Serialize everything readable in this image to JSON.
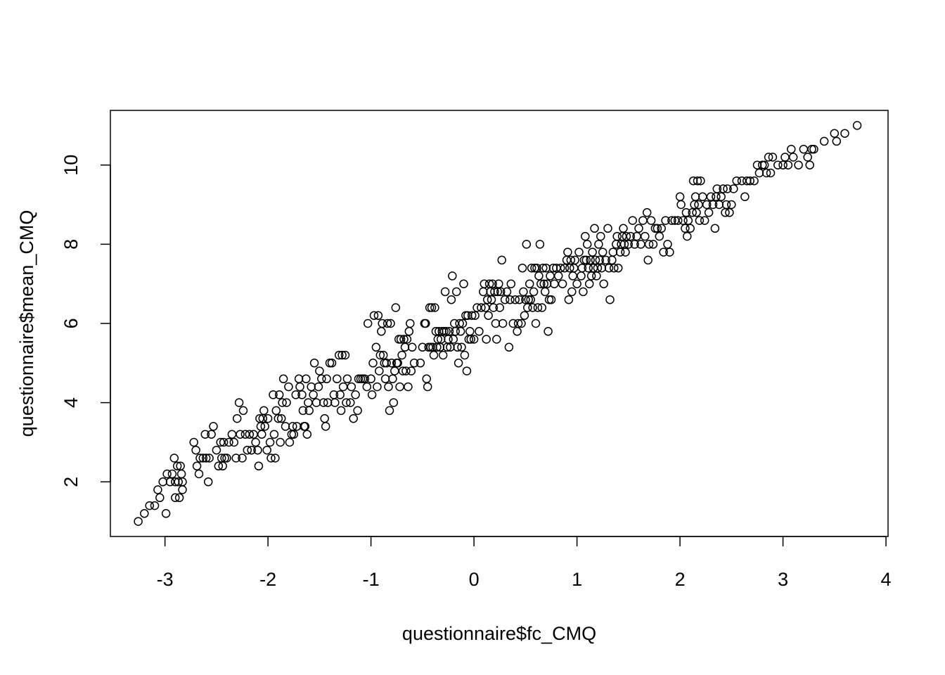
{
  "chart_data": {
    "type": "scatter",
    "title": "",
    "xlabel": "questionnaire$fc_CMQ",
    "ylabel": "questionnaire$mean_CMQ",
    "xlim": [
      -3.53,
      4.02
    ],
    "ylim": [
      0.62,
      11.38
    ],
    "xticks": [
      -3,
      -2,
      -1,
      0,
      1,
      2,
      3,
      4
    ],
    "yticks": [
      2,
      4,
      6,
      8,
      10
    ],
    "grid": false,
    "legend": "none",
    "marker": "open-circle",
    "points": [
      [
        -3.26,
        1.0
      ],
      [
        -3.2,
        1.2
      ],
      [
        -3.15,
        1.4
      ],
      [
        -3.1,
        1.4
      ],
      [
        -3.07,
        1.8
      ],
      [
        -3.05,
        1.6
      ],
      [
        -3.02,
        2.0
      ],
      [
        -2.99,
        1.2
      ],
      [
        -2.98,
        2.2
      ],
      [
        -2.95,
        2.0
      ],
      [
        -2.93,
        2.2
      ],
      [
        -2.91,
        2.6
      ],
      [
        -2.9,
        2.0
      ],
      [
        -2.9,
        1.6
      ],
      [
        -2.88,
        2.4
      ],
      [
        -2.87,
        2.0
      ],
      [
        -2.86,
        1.6
      ],
      [
        -2.85,
        2.4
      ],
      [
        -2.84,
        2.2
      ],
      [
        -2.83,
        1.8
      ],
      [
        -2.83,
        2.0
      ],
      [
        -2.72,
        3.0
      ],
      [
        -2.7,
        2.8
      ],
      [
        -2.69,
        2.4
      ],
      [
        -2.67,
        2.2
      ],
      [
        -2.66,
        2.6
      ],
      [
        -2.63,
        2.6
      ],
      [
        -2.61,
        3.2
      ],
      [
        -2.6,
        2.6
      ],
      [
        -2.58,
        2.0
      ],
      [
        -2.57,
        2.6
      ],
      [
        -2.55,
        3.2
      ],
      [
        -2.53,
        3.4
      ],
      [
        -2.5,
        2.8
      ],
      [
        -2.48,
        2.4
      ],
      [
        -2.46,
        3.0
      ],
      [
        -2.45,
        2.6
      ],
      [
        -2.44,
        2.4
      ],
      [
        -2.43,
        3.0
      ],
      [
        -2.42,
        2.6
      ],
      [
        -2.4,
        2.6
      ],
      [
        -2.38,
        3.0
      ],
      [
        -2.35,
        3.2
      ],
      [
        -2.33,
        3.0
      ],
      [
        -2.31,
        2.6
      ],
      [
        -2.3,
        3.6
      ],
      [
        -2.28,
        4.0
      ],
      [
        -2.27,
        3.2
      ],
      [
        -2.25,
        2.6
      ],
      [
        -2.24,
        3.8
      ],
      [
        -2.22,
        3.2
      ],
      [
        -2.2,
        2.8
      ],
      [
        -2.18,
        3.2
      ],
      [
        -2.16,
        2.8
      ],
      [
        -2.14,
        3.2
      ],
      [
        -2.12,
        3.0
      ],
      [
        -2.1,
        2.8
      ],
      [
        -2.09,
        2.4
      ],
      [
        -2.08,
        3.6
      ],
      [
        -2.07,
        3.4
      ],
      [
        -2.06,
        3.2
      ],
      [
        -2.05,
        3.6
      ],
      [
        -2.04,
        3.8
      ],
      [
        -2.03,
        3.4
      ],
      [
        -2.01,
        2.8
      ],
      [
        -2.0,
        3.6
      ],
      [
        -1.98,
        3.0
      ],
      [
        -1.97,
        2.6
      ],
      [
        -1.95,
        4.2
      ],
      [
        -1.94,
        3.2
      ],
      [
        -1.93,
        2.6
      ],
      [
        -1.92,
        3.8
      ],
      [
        -1.9,
        3.6
      ],
      [
        -1.89,
        4.2
      ],
      [
        -1.88,
        3.0
      ],
      [
        -1.87,
        3.6
      ],
      [
        -1.86,
        4.0
      ],
      [
        -1.85,
        4.6
      ],
      [
        -1.83,
        3.4
      ],
      [
        -1.82,
        4.0
      ],
      [
        -1.8,
        4.4
      ],
      [
        -1.79,
        3.0
      ],
      [
        -1.77,
        3.2
      ],
      [
        -1.76,
        3.4
      ],
      [
        -1.75,
        3.2
      ],
      [
        -1.73,
        4.2
      ],
      [
        -1.72,
        3.4
      ],
      [
        -1.7,
        4.6
      ],
      [
        -1.69,
        4.4
      ],
      [
        -1.67,
        4.2
      ],
      [
        -1.66,
        3.8
      ],
      [
        -1.65,
        3.4
      ],
      [
        -1.64,
        3.4
      ],
      [
        -1.63,
        4.6
      ],
      [
        -1.62,
        3.2
      ],
      [
        -1.61,
        4.0
      ],
      [
        -1.6,
        3.8
      ],
      [
        -1.58,
        4.4
      ],
      [
        -1.56,
        4.2
      ],
      [
        -1.55,
        5.0
      ],
      [
        -1.53,
        4.0
      ],
      [
        -1.51,
        4.4
      ],
      [
        -1.5,
        4.8
      ],
      [
        -1.48,
        4.6
      ],
      [
        -1.46,
        4.0
      ],
      [
        -1.45,
        3.6
      ],
      [
        -1.44,
        3.4
      ],
      [
        -1.43,
        4.6
      ],
      [
        -1.42,
        4.0
      ],
      [
        -1.4,
        5.0
      ],
      [
        -1.38,
        5.0
      ],
      [
        -1.36,
        4.2
      ],
      [
        -1.35,
        4.0
      ],
      [
        -1.33,
        4.6
      ],
      [
        -1.31,
        5.2
      ],
      [
        -1.3,
        4.2
      ],
      [
        -1.29,
        3.8
      ],
      [
        -1.28,
        5.2
      ],
      [
        -1.27,
        4.4
      ],
      [
        -1.25,
        5.2
      ],
      [
        -1.24,
        4.0
      ],
      [
        -1.23,
        4.6
      ],
      [
        -1.2,
        4.0
      ],
      [
        -1.19,
        4.4
      ],
      [
        -1.17,
        3.6
      ],
      [
        -1.15,
        4.2
      ],
      [
        -1.13,
        3.8
      ],
      [
        -1.12,
        4.6
      ],
      [
        -1.1,
        4.6
      ],
      [
        -1.08,
        4.6
      ],
      [
        -1.06,
        4.6
      ],
      [
        -1.04,
        4.4
      ],
      [
        -1.03,
        6.0
      ],
      [
        -1.0,
        4.6
      ],
      [
        -0.99,
        4.2
      ],
      [
        -0.98,
        5.0
      ],
      [
        -0.97,
        6.2
      ],
      [
        -0.95,
        5.4
      ],
      [
        -0.94,
        4.4
      ],
      [
        -0.93,
        6.2
      ],
      [
        -0.92,
        4.8
      ],
      [
        -0.91,
        5.2
      ],
      [
        -0.9,
        5.8
      ],
      [
        -0.89,
        6.0
      ],
      [
        -0.88,
        5.2
      ],
      [
        -0.87,
        5.0
      ],
      [
        -0.86,
        4.6
      ],
      [
        -0.85,
        5.0
      ],
      [
        -0.84,
        6.0
      ],
      [
        -0.83,
        4.4
      ],
      [
        -0.82,
        3.8
      ],
      [
        -0.81,
        6.0
      ],
      [
        -0.8,
        5.0
      ],
      [
        -0.79,
        4.6
      ],
      [
        -0.78,
        4.0
      ],
      [
        -0.77,
        4.8
      ],
      [
        -0.76,
        6.4
      ],
      [
        -0.75,
        5.0
      ],
      [
        -0.74,
        5.0
      ],
      [
        -0.73,
        5.6
      ],
      [
        -0.72,
        4.4
      ],
      [
        -0.71,
        5.6
      ],
      [
        -0.7,
        5.2
      ],
      [
        -0.69,
        4.8
      ],
      [
        -0.68,
        5.6
      ],
      [
        -0.67,
        5.4
      ],
      [
        -0.66,
        4.8
      ],
      [
        -0.65,
        5.6
      ],
      [
        -0.64,
        4.4
      ],
      [
        -0.63,
        5.8
      ],
      [
        -0.62,
        6.0
      ],
      [
        -0.61,
        4.8
      ],
      [
        -0.6,
        5.4
      ],
      [
        -0.58,
        5.0
      ],
      [
        -0.52,
        5.0
      ],
      [
        -0.5,
        5.4
      ],
      [
        -0.48,
        6.0
      ],
      [
        -0.47,
        6.0
      ],
      [
        -0.46,
        4.6
      ],
      [
        -0.45,
        4.4
      ],
      [
        -0.44,
        5.4
      ],
      [
        -0.43,
        6.4
      ],
      [
        -0.42,
        5.4
      ],
      [
        -0.41,
        6.4
      ],
      [
        -0.4,
        5.4
      ],
      [
        -0.39,
        5.2
      ],
      [
        -0.38,
        6.4
      ],
      [
        -0.37,
        5.8
      ],
      [
        -0.36,
        5.4
      ],
      [
        -0.35,
        5.6
      ],
      [
        -0.34,
        5.8
      ],
      [
        -0.33,
        5.4
      ],
      [
        -0.32,
        5.6
      ],
      [
        -0.31,
        5.8
      ],
      [
        -0.3,
        5.2
      ],
      [
        -0.29,
        5.8
      ],
      [
        -0.28,
        6.8
      ],
      [
        -0.27,
        5.8
      ],
      [
        -0.26,
        5.4
      ],
      [
        -0.25,
        5.6
      ],
      [
        -0.24,
        5.8
      ],
      [
        -0.23,
        5.4
      ],
      [
        -0.22,
        6.6
      ],
      [
        -0.21,
        7.2
      ],
      [
        -0.2,
        5.6
      ],
      [
        -0.19,
        6.0
      ],
      [
        -0.18,
        5.8
      ],
      [
        -0.17,
        6.8
      ],
      [
        -0.16,
        5.4
      ],
      [
        -0.15,
        5.0
      ],
      [
        -0.14,
        6.0
      ],
      [
        -0.13,
        5.8
      ],
      [
        -0.12,
        5.4
      ],
      [
        -0.11,
        6.0
      ],
      [
        -0.1,
        7.0
      ],
      [
        -0.09,
        5.2
      ],
      [
        -0.08,
        6.2
      ],
      [
        -0.07,
        4.8
      ],
      [
        -0.06,
        6.2
      ],
      [
        -0.05,
        5.6
      ],
      [
        -0.04,
        5.8
      ],
      [
        -0.03,
        5.6
      ],
      [
        -0.02,
        6.2
      ],
      [
        0.0,
        5.6
      ],
      [
        0.01,
        6.2
      ],
      [
        0.03,
        6.4
      ],
      [
        0.05,
        5.8
      ],
      [
        0.07,
        6.4
      ],
      [
        0.09,
        6.8
      ],
      [
        0.1,
        7.0
      ],
      [
        0.11,
        6.4
      ],
      [
        0.12,
        5.6
      ],
      [
        0.13,
        6.6
      ],
      [
        0.14,
        6.2
      ],
      [
        0.15,
        7.0
      ],
      [
        0.16,
        6.8
      ],
      [
        0.17,
        6.6
      ],
      [
        0.18,
        7.0
      ],
      [
        0.19,
        6.4
      ],
      [
        0.2,
        6.8
      ],
      [
        0.21,
        6.0
      ],
      [
        0.22,
        5.6
      ],
      [
        0.23,
        6.8
      ],
      [
        0.24,
        7.0
      ],
      [
        0.25,
        6.4
      ],
      [
        0.26,
        6.8
      ],
      [
        0.27,
        7.6
      ],
      [
        0.28,
        6.0
      ],
      [
        0.3,
        6.6
      ],
      [
        0.32,
        6.8
      ],
      [
        0.34,
        5.4
      ],
      [
        0.35,
        6.6
      ],
      [
        0.36,
        7.0
      ],
      [
        0.38,
        6.0
      ],
      [
        0.4,
        6.6
      ],
      [
        0.42,
        5.8
      ],
      [
        0.43,
        6.0
      ],
      [
        0.44,
        6.6
      ],
      [
        0.46,
        6.0
      ],
      [
        0.47,
        7.4
      ],
      [
        0.48,
        6.8
      ],
      [
        0.49,
        6.2
      ],
      [
        0.5,
        6.6
      ],
      [
        0.51,
        8.0
      ],
      [
        0.52,
        6.4
      ],
      [
        0.53,
        6.6
      ],
      [
        0.54,
        7.0
      ],
      [
        0.55,
        6.6
      ],
      [
        0.56,
        7.4
      ],
      [
        0.57,
        6.4
      ],
      [
        0.58,
        6.8
      ],
      [
        0.59,
        7.4
      ],
      [
        0.6,
        6.0
      ],
      [
        0.61,
        7.4
      ],
      [
        0.62,
        6.4
      ],
      [
        0.63,
        7.2
      ],
      [
        0.64,
        8.0
      ],
      [
        0.65,
        7.0
      ],
      [
        0.66,
        6.4
      ],
      [
        0.67,
        7.4
      ],
      [
        0.68,
        7.0
      ],
      [
        0.69,
        6.8
      ],
      [
        0.7,
        7.4
      ],
      [
        0.71,
        7.0
      ],
      [
        0.72,
        5.8
      ],
      [
        0.73,
        6.6
      ],
      [
        0.74,
        7.2
      ],
      [
        0.75,
        6.6
      ],
      [
        0.77,
        7.4
      ],
      [
        0.78,
        7.0
      ],
      [
        0.8,
        7.4
      ],
      [
        0.82,
        7.2
      ],
      [
        0.84,
        7.4
      ],
      [
        0.86,
        7.0
      ],
      [
        0.88,
        7.4
      ],
      [
        0.9,
        7.6
      ],
      [
        0.91,
        7.8
      ],
      [
        0.92,
        6.6
      ],
      [
        0.93,
        7.4
      ],
      [
        0.94,
        7.6
      ],
      [
        0.95,
        6.8
      ],
      [
        0.96,
        7.2
      ],
      [
        0.97,
        7.4
      ],
      [
        0.98,
        7.6
      ],
      [
        1.0,
        7.0
      ],
      [
        1.02,
        7.8
      ],
      [
        1.04,
        7.2
      ],
      [
        1.05,
        7.4
      ],
      [
        1.06,
        6.8
      ],
      [
        1.07,
        7.6
      ],
      [
        1.08,
        8.2
      ],
      [
        1.09,
        7.6
      ],
      [
        1.1,
        8.0
      ],
      [
        1.11,
        7.4
      ],
      [
        1.12,
        7.0
      ],
      [
        1.13,
        7.6
      ],
      [
        1.14,
        7.2
      ],
      [
        1.15,
        7.8
      ],
      [
        1.16,
        7.4
      ],
      [
        1.17,
        8.4
      ],
      [
        1.18,
        7.6
      ],
      [
        1.19,
        7.2
      ],
      [
        1.2,
        7.4
      ],
      [
        1.21,
        8.0
      ],
      [
        1.22,
        7.6
      ],
      [
        1.23,
        8.2
      ],
      [
        1.24,
        7.4
      ],
      [
        1.25,
        7.8
      ],
      [
        1.26,
        7.0
      ],
      [
        1.28,
        7.6
      ],
      [
        1.3,
        8.4
      ],
      [
        1.31,
        7.4
      ],
      [
        1.32,
        6.6
      ],
      [
        1.34,
        7.6
      ],
      [
        1.35,
        7.8
      ],
      [
        1.36,
        7.4
      ],
      [
        1.38,
        8.0
      ],
      [
        1.39,
        8.2
      ],
      [
        1.4,
        7.4
      ],
      [
        1.42,
        7.8
      ],
      [
        1.43,
        8.0
      ],
      [
        1.44,
        8.2
      ],
      [
        1.45,
        8.4
      ],
      [
        1.46,
        8.0
      ],
      [
        1.47,
        7.8
      ],
      [
        1.48,
        8.2
      ],
      [
        1.5,
        8.0
      ],
      [
        1.52,
        8.2
      ],
      [
        1.54,
        8.6
      ],
      [
        1.56,
        8.0
      ],
      [
        1.58,
        8.2
      ],
      [
        1.6,
        8.4
      ],
      [
        1.62,
        8.0
      ],
      [
        1.64,
        8.6
      ],
      [
        1.66,
        8.2
      ],
      [
        1.68,
        8.8
      ],
      [
        1.69,
        7.6
      ],
      [
        1.7,
        8.0
      ],
      [
        1.72,
        8.6
      ],
      [
        1.74,
        8.0
      ],
      [
        1.76,
        8.4
      ],
      [
        1.78,
        8.4
      ],
      [
        1.8,
        8.2
      ],
      [
        1.82,
        8.4
      ],
      [
        1.84,
        7.8
      ],
      [
        1.86,
        8.6
      ],
      [
        1.88,
        8.0
      ],
      [
        1.9,
        7.8
      ],
      [
        1.92,
        8.6
      ],
      [
        1.95,
        8.6
      ],
      [
        1.98,
        8.6
      ],
      [
        2.0,
        9.2
      ],
      [
        2.01,
        9.0
      ],
      [
        2.03,
        8.6
      ],
      [
        2.05,
        8.4
      ],
      [
        2.06,
        8.8
      ],
      [
        2.07,
        8.2
      ],
      [
        2.08,
        8.6
      ],
      [
        2.1,
        8.4
      ],
      [
        2.12,
        8.8
      ],
      [
        2.13,
        9.6
      ],
      [
        2.14,
        9.0
      ],
      [
        2.15,
        9.2
      ],
      [
        2.16,
        8.8
      ],
      [
        2.17,
        9.6
      ],
      [
        2.18,
        9.0
      ],
      [
        2.19,
        8.6
      ],
      [
        2.2,
        9.6
      ],
      [
        2.22,
        9.2
      ],
      [
        2.24,
        8.6
      ],
      [
        2.26,
        9.0
      ],
      [
        2.28,
        8.8
      ],
      [
        2.3,
        9.2
      ],
      [
        2.32,
        9.0
      ],
      [
        2.34,
        8.4
      ],
      [
        2.35,
        9.2
      ],
      [
        2.36,
        9.4
      ],
      [
        2.38,
        9.0
      ],
      [
        2.4,
        9.2
      ],
      [
        2.42,
        9.4
      ],
      [
        2.44,
        8.8
      ],
      [
        2.45,
        9.0
      ],
      [
        2.46,
        9.4
      ],
      [
        2.48,
        8.8
      ],
      [
        2.5,
        9.0
      ],
      [
        2.52,
        9.4
      ],
      [
        2.55,
        9.6
      ],
      [
        2.6,
        9.6
      ],
      [
        2.63,
        9.2
      ],
      [
        2.65,
        9.6
      ],
      [
        2.68,
        9.6
      ],
      [
        2.72,
        9.6
      ],
      [
        2.75,
        10.0
      ],
      [
        2.77,
        9.8
      ],
      [
        2.8,
        10.0
      ],
      [
        2.82,
        10.0
      ],
      [
        2.84,
        9.8
      ],
      [
        2.86,
        10.2
      ],
      [
        2.88,
        9.8
      ],
      [
        2.9,
        10.2
      ],
      [
        2.95,
        10.0
      ],
      [
        3.0,
        10.0
      ],
      [
        3.02,
        10.2
      ],
      [
        3.05,
        10.0
      ],
      [
        3.08,
        10.4
      ],
      [
        3.1,
        10.2
      ],
      [
        3.15,
        10.0
      ],
      [
        3.2,
        10.4
      ],
      [
        3.24,
        10.2
      ],
      [
        3.26,
        10.0
      ],
      [
        3.28,
        10.4
      ],
      [
        3.3,
        10.4
      ],
      [
        3.4,
        10.6
      ],
      [
        3.5,
        10.8
      ],
      [
        3.52,
        10.6
      ],
      [
        3.6,
        10.8
      ],
      [
        3.72,
        11.0
      ]
    ]
  }
}
